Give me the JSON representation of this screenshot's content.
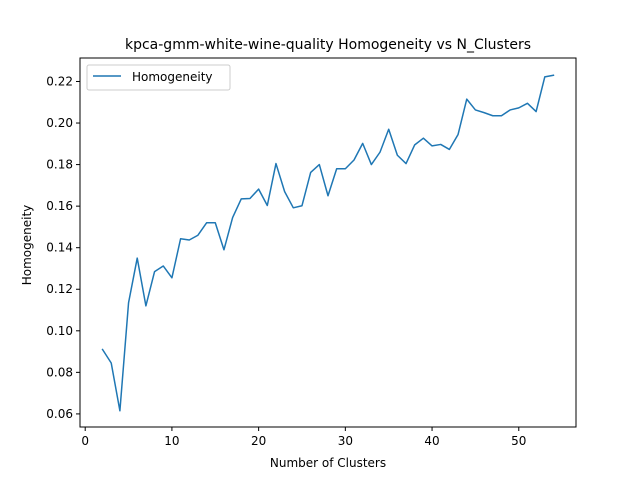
{
  "chart_data": {
    "type": "line",
    "title": "kpca-gmm-white-wine-quality Homogeneity vs N_Clusters",
    "xlabel": "Number of Clusters",
    "ylabel": "Homogeneity",
    "xlim": [
      -0.6,
      56.6
    ],
    "ylim": [
      0.0537,
      0.2313
    ],
    "xticks": [
      0,
      10,
      20,
      30,
      40,
      50
    ],
    "yticks": [
      0.06,
      0.08,
      0.1,
      0.12,
      0.14,
      0.16,
      0.18,
      0.2,
      0.22
    ],
    "xtick_labels": [
      "0",
      "10",
      "20",
      "30",
      "40",
      "50"
    ],
    "ytick_labels": [
      "0.06",
      "0.08",
      "0.10",
      "0.12",
      "0.14",
      "0.16",
      "0.18",
      "0.20",
      "0.22"
    ],
    "grid": false,
    "legend_position": "upper-left",
    "series": [
      {
        "name": "Homogeneity",
        "color": "#1f77b4",
        "x": [
          2,
          3,
          4,
          5,
          6,
          7,
          8,
          9,
          10,
          11,
          12,
          13,
          14,
          15,
          16,
          17,
          18,
          19,
          20,
          21,
          22,
          23,
          24,
          25,
          26,
          27,
          28,
          29,
          30,
          31,
          32,
          33,
          34,
          35,
          36,
          37,
          38,
          39,
          40,
          41,
          42,
          43,
          44,
          45,
          46,
          47,
          48,
          49,
          50,
          51,
          52,
          53,
          54
        ],
        "y": [
          0.091,
          0.0845,
          0.0615,
          0.1135,
          0.135,
          0.112,
          0.1285,
          0.1312,
          0.1255,
          0.1443,
          0.1437,
          0.146,
          0.152,
          0.152,
          0.139,
          0.1545,
          0.1635,
          0.1637,
          0.1682,
          0.1603,
          0.1805,
          0.167,
          0.1592,
          0.1602,
          0.1762,
          0.18,
          0.165,
          0.178,
          0.178,
          0.1822,
          0.1902,
          0.18,
          0.186,
          0.197,
          0.1845,
          0.1805,
          0.1895,
          0.1927,
          0.189,
          0.1897,
          0.1873,
          0.1945,
          0.2115,
          0.2063,
          0.205,
          0.2035,
          0.2035,
          0.2063,
          0.2073,
          0.2095,
          0.2055,
          0.2222,
          0.223
        ]
      }
    ]
  }
}
